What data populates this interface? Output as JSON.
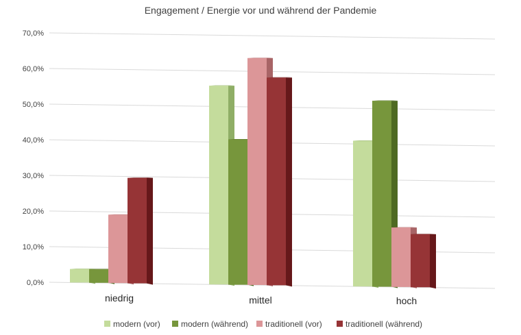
{
  "chart_data": {
    "type": "bar",
    "title": "Engagement / Energie vor und während der Pandemie",
    "categories": [
      "niedrig",
      "mittel",
      "hoch"
    ],
    "series": [
      {
        "name": "modern (vor)",
        "values": [
          3.8,
          55.8,
          40.9
        ],
        "color": "#c4dc9c",
        "side_color": "#8fae66"
      },
      {
        "name": "modern (während)",
        "values": [
          3.8,
          40.8,
          52.2
        ],
        "color": "#77963c",
        "side_color": "#4e6a22"
      },
      {
        "name": "traditionell (vor)",
        "values": [
          19.2,
          63.7,
          16.7
        ],
        "color": "#dc9698",
        "side_color": "#a86466"
      },
      {
        "name": "traditionell (während)",
        "values": [
          29.6,
          58.3,
          14.9
        ],
        "color": "#963436",
        "side_color": "#66181a"
      }
    ],
    "y_ticks": [
      "0,0%",
      "10,0%",
      "20,0%",
      "30,0%",
      "40,0%",
      "50,0%",
      "60,0%",
      "70,0%"
    ],
    "ylim": [
      0,
      70
    ],
    "grid": true,
    "legend_position": "bottom"
  }
}
